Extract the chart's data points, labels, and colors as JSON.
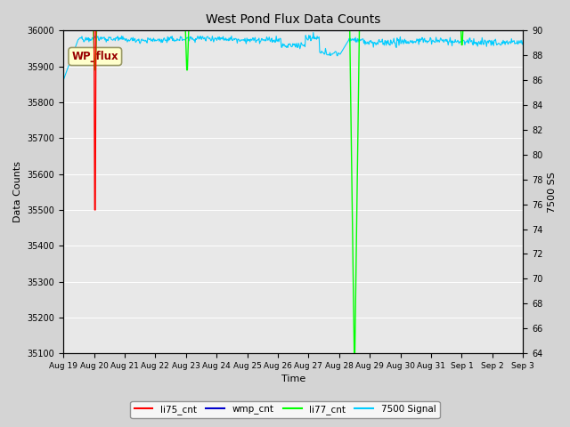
{
  "title": "West Pond Flux Data Counts",
  "xlabel": "Time",
  "ylabel": "Data Counts",
  "ylabel_right": "7500 SS",
  "ylim_left": [
    35100,
    36000
  ],
  "ylim_right": [
    64,
    90
  ],
  "fig_bg_color": "#d4d4d4",
  "plot_bg_color": "#e8e8e8",
  "annotation_text": "WP_flux",
  "legend_entries": [
    "li75_cnt",
    "wmp_cnt",
    "li77_cnt",
    "7500 Signal"
  ],
  "legend_colors": [
    "#ff0000",
    "#0000cc",
    "#00ff00",
    "#00ccff"
  ],
  "yticks_left": [
    35100,
    35200,
    35300,
    35400,
    35500,
    35600,
    35700,
    35800,
    35900,
    36000
  ],
  "yticks_right": [
    64,
    66,
    68,
    70,
    72,
    74,
    76,
    78,
    80,
    82,
    84,
    86,
    88,
    90
  ],
  "day_labels": [
    "Aug 19",
    "Aug 20",
    "Aug 21",
    "Aug 22",
    "Aug 23",
    "Aug 24",
    "Aug 25",
    "Aug 26",
    "Aug 27",
    "Aug 28",
    "Aug 29",
    "Aug 30",
    "Aug 31",
    "Sep 1",
    "Sep 2",
    "Sep 3"
  ],
  "total_days": 15
}
